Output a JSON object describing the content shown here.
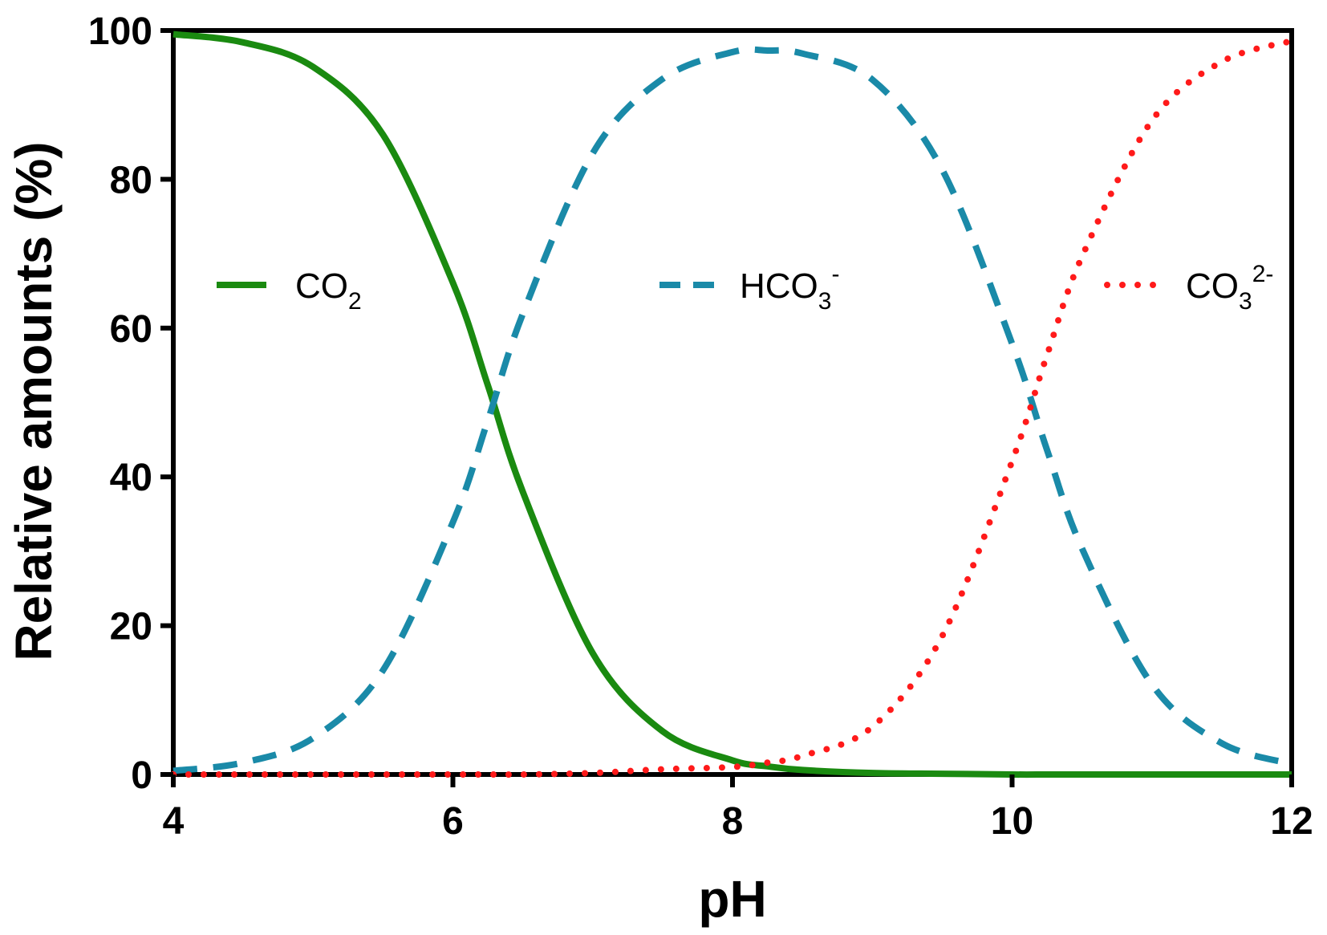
{
  "chart_data": {
    "type": "line",
    "xlabel": "pH",
    "ylabel": "Relative amounts (%)",
    "xlim": [
      4,
      12
    ],
    "ylim": [
      0,
      100
    ],
    "x_ticks": [
      4,
      6,
      8,
      10,
      12
    ],
    "x_tick_labels": [
      "4",
      "6",
      "8",
      "10",
      "12"
    ],
    "y_ticks": [
      0,
      20,
      40,
      60,
      80,
      100
    ],
    "y_tick_labels": [
      "0",
      "20",
      "40",
      "60",
      "80",
      "100"
    ],
    "grid": false,
    "legend_position": "top, inside plot",
    "x": [
      4.0,
      4.5,
      5.0,
      5.5,
      6.0,
      6.25,
      6.5,
      7.0,
      7.5,
      8.0,
      8.25,
      8.5,
      9.0,
      9.5,
      10.0,
      10.25,
      10.5,
      11.0,
      11.5,
      12.0
    ],
    "series": [
      {
        "name": "CO2",
        "legend": {
          "main": "CO",
          "sub": "2",
          "sup": ""
        },
        "color": "#1a8a10",
        "style": "solid",
        "values": [
          99.5,
          98.4,
          95.1,
          86.0,
          66.1,
          52.3,
          38.0,
          16.3,
          5.8,
          1.9,
          1.1,
          0.6,
          0.2,
          0.1,
          0.0,
          0.0,
          0.0,
          0.0,
          0.0,
          0.0
        ]
      },
      {
        "name": "HCO3-",
        "legend": {
          "main": "HCO",
          "sub": "3",
          "sup": "-"
        },
        "color": "#1a8aa8",
        "style": "dashed",
        "values": [
          0.5,
          1.6,
          4.9,
          14.0,
          33.9,
          47.6,
          61.9,
          83.5,
          93.5,
          97.1,
          97.3,
          96.9,
          93.4,
          81.3,
          57.9,
          43.6,
          30.4,
          12.1,
          4.2,
          1.4
        ]
      },
      {
        "name": "CO3 2-",
        "legend": {
          "main": "CO",
          "sub": "3",
          "sup": "2-"
        },
        "color": "#ff1a1a",
        "style": "dotted",
        "values": [
          0.0,
          0.0,
          0.0,
          0.0,
          0.0,
          0.0,
          0.0,
          0.2,
          0.7,
          1.0,
          1.6,
          2.5,
          6.4,
          18.6,
          42.1,
          56.4,
          69.6,
          87.9,
          95.8,
          98.6
        ]
      }
    ]
  }
}
